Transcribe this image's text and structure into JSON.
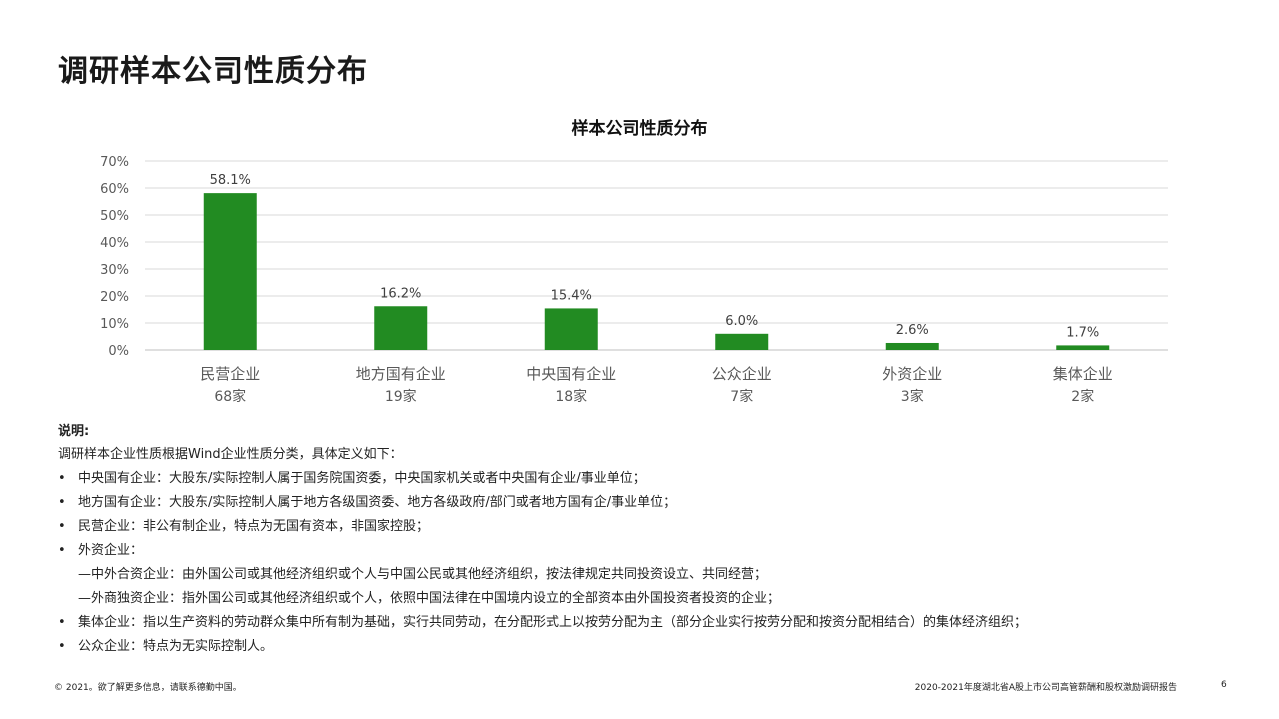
{
  "page": {
    "title": "调研样本公司性质分布"
  },
  "chart_data": {
    "type": "bar",
    "title": "样本公司性质分布",
    "categories": [
      "民营企业",
      "地方国有企业",
      "中央国有企业",
      "公众企业",
      "外资企业",
      "集体企业"
    ],
    "counts": [
      "68家",
      "19家",
      "18家",
      "7家",
      "3家",
      "2家"
    ],
    "values": [
      58.1,
      16.2,
      15.4,
      6.0,
      2.6,
      1.7
    ],
    "data_labels": [
      "58.1%",
      "16.2%",
      "15.4%",
      "6.0%",
      "2.6%",
      "1.7%"
    ],
    "y_ticks": [
      "0%",
      "10%",
      "20%",
      "30%",
      "40%",
      "50%",
      "60%",
      "70%"
    ],
    "ylim": [
      0,
      70
    ],
    "grid": true,
    "bar_color": "#228B22"
  },
  "notes": {
    "label": "说明:",
    "intro": "调研样本企业性质根据Wind企业性质分类，具体定义如下：",
    "items": [
      {
        "bullet": "•",
        "text": "中央国有企业：大股东/实际控制人属于国务院国资委，中央国家机关或者中央国有企业/事业单位；"
      },
      {
        "bullet": "•",
        "text": "地方国有企业：大股东/实际控制人属于地方各级国资委、地方各级政府/部门或者地方国有企/事业单位；"
      },
      {
        "bullet": "•",
        "text": "民营企业：非公有制企业，特点为无国有资本，非国家控股；"
      },
      {
        "bullet": "•",
        "text": "外资企业："
      },
      {
        "bullet": "",
        "text": "—中外合资企业：由外国公司或其他经济组织或个人与中国公民或其他经济组织，按法律规定共同投资设立、共同经营；"
      },
      {
        "bullet": "",
        "text": "—外商独资企业：指外国公司或其他经济组织或个人，依照中国法律在中国境内设立的全部资本由外国投资者投资的企业；"
      },
      {
        "bullet": "•",
        "text": "集体企业：指以生产资料的劳动群众集中所有制为基础，实行共同劳动，在分配形式上以按劳分配为主（部分企业实行按劳分配和按资分配相结合）的集体经济组织；"
      },
      {
        "bullet": "•",
        "text": "公众企业：特点为无实际控制人。"
      }
    ]
  },
  "footer": {
    "copyright": "© 2021。欲了解更多信息，请联系德勤中国。",
    "report": "2020-2021年度湖北省A股上市公司高管薪酬和股权激励调研报告",
    "page_number": "6"
  }
}
